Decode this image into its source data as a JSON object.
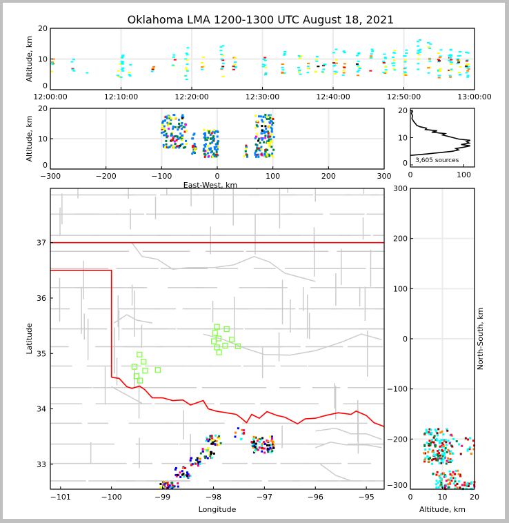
{
  "chart_data": [
    {
      "id": "time_height",
      "type": "scatter",
      "title": "Oklahoma LMA 1200-1300 UTC August 18, 2021",
      "xlabel": "",
      "ylabel": "Altitude, km",
      "x_tick_labels": [
        "12:00:00",
        "12:10:00",
        "12:20:00",
        "12:30:00",
        "12:40:00",
        "12:50:00",
        "13:00:00"
      ],
      "x_range_minutes": [
        0,
        60
      ],
      "y_ticks": [
        0,
        10,
        20
      ],
      "ylim": [
        0,
        20
      ],
      "grid": true,
      "colormap": [
        "#00ffff",
        "#ffff00",
        "#ff8000",
        "#ff0000",
        "#8b0000",
        "#000000"
      ],
      "columns": [
        {
          "t": 0.3,
          "alt": [
            5,
            10
          ],
          "n": 6
        },
        {
          "t": 3.2,
          "alt": [
            5,
            10
          ],
          "n": 5
        },
        {
          "t": 5.2,
          "alt": [
            5.5,
            5.5
          ],
          "n": 1
        },
        {
          "t": 9.6,
          "alt": [
            4,
            6.5
          ],
          "n": 3
        },
        {
          "t": 10.1,
          "alt": [
            4,
            14.5
          ],
          "n": 14
        },
        {
          "t": 11.2,
          "alt": [
            4.5,
            9
          ],
          "n": 4
        },
        {
          "t": 14.5,
          "alt": [
            5,
            8
          ],
          "n": 4
        },
        {
          "t": 17.5,
          "alt": [
            6.5,
            12.5
          ],
          "n": 5
        },
        {
          "t": 19.3,
          "alt": [
            3,
            14.5
          ],
          "n": 12
        },
        {
          "t": 21.5,
          "alt": [
            5,
            11
          ],
          "n": 5
        },
        {
          "t": 24.3,
          "alt": [
            4,
            16
          ],
          "n": 12
        },
        {
          "t": 26.1,
          "alt": [
            3.5,
            10.5
          ],
          "n": 8
        },
        {
          "t": 30.3,
          "alt": [
            4.5,
            12
          ],
          "n": 10
        },
        {
          "t": 33.0,
          "alt": [
            5,
            13
          ],
          "n": 9
        },
        {
          "t": 35.3,
          "alt": [
            4,
            11.5
          ],
          "n": 9
        },
        {
          "t": 36.5,
          "alt": [
            5,
            9
          ],
          "n": 5
        },
        {
          "t": 37.7,
          "alt": [
            5,
            11
          ],
          "n": 6
        },
        {
          "t": 38.7,
          "alt": [
            4.5,
            9.5
          ],
          "n": 7
        },
        {
          "t": 40.3,
          "alt": [
            4.5,
            13.5
          ],
          "n": 10
        },
        {
          "t": 41.5,
          "alt": [
            4.5,
            14
          ],
          "n": 8
        },
        {
          "t": 43.6,
          "alt": [
            4.5,
            12.5
          ],
          "n": 11
        },
        {
          "t": 45.4,
          "alt": [
            5,
            13.5
          ],
          "n": 8
        },
        {
          "t": 47.3,
          "alt": [
            5,
            12
          ],
          "n": 12
        },
        {
          "t": 48.6,
          "alt": [
            4.5,
            13
          ],
          "n": 10
        },
        {
          "t": 50.2,
          "alt": [
            4.5,
            14
          ],
          "n": 13
        },
        {
          "t": 52.2,
          "alt": [
            6.5,
            18
          ],
          "n": 12
        },
        {
          "t": 53.6,
          "alt": [
            5,
            16
          ],
          "n": 10
        },
        {
          "t": 55.1,
          "alt": [
            3.5,
            13
          ],
          "n": 15
        },
        {
          "t": 56.6,
          "alt": [
            4,
            15
          ],
          "n": 18
        },
        {
          "t": 57.8,
          "alt": [
            4,
            13
          ],
          "n": 14
        },
        {
          "t": 59.0,
          "alt": [
            3.5,
            12.5
          ],
          "n": 16
        }
      ]
    },
    {
      "id": "ew_height",
      "type": "scatter",
      "xlabel": "East-West, km",
      "ylabel": "Altitude, km",
      "x_ticks": [
        -300,
        -200,
        -100,
        0,
        100,
        200,
        300
      ],
      "xlim": [
        -300,
        300
      ],
      "y_ticks": [
        0,
        10,
        20
      ],
      "ylim": [
        0,
        20
      ],
      "grid": true,
      "colormap": [
        "#0080ff",
        "#008040",
        "#ffff00",
        "#ff0000",
        "#ff00ff",
        "#000000"
      ],
      "clusters": [
        {
          "x": [
            -100,
            -55
          ],
          "alt": [
            7,
            18
          ],
          "n": 120
        },
        {
          "x": [
            -45,
            -38
          ],
          "alt": [
            5,
            12
          ],
          "n": 20
        },
        {
          "x": [
            -25,
            2
          ],
          "alt": [
            4,
            13
          ],
          "n": 90
        },
        {
          "x": [
            48,
            55
          ],
          "alt": [
            4,
            8
          ],
          "n": 10
        },
        {
          "x": [
            68,
            102
          ],
          "alt": [
            4,
            18
          ],
          "n": 130
        }
      ]
    },
    {
      "id": "alt_histogram",
      "type": "line",
      "xlabel": "",
      "ylabel": "",
      "x_ticks": [
        0,
        100
      ],
      "xlim": [
        0,
        120
      ],
      "y_ticks": [
        0,
        10,
        20
      ],
      "ylim": [
        0,
        20
      ],
      "annotation": "3,605 sources",
      "profile": [
        [
          3.5,
          0
        ],
        [
          4.0,
          30
        ],
        [
          4.5,
          55
        ],
        [
          5.0,
          78
        ],
        [
          5.5,
          90
        ],
        [
          6.0,
          85
        ],
        [
          6.5,
          100
        ],
        [
          7.0,
          112
        ],
        [
          7.5,
          95
        ],
        [
          8.0,
          110
        ],
        [
          8.5,
          105
        ],
        [
          9.0,
          112
        ],
        [
          9.5,
          90
        ],
        [
          10.0,
          80
        ],
        [
          10.5,
          70
        ],
        [
          11.0,
          60
        ],
        [
          11.5,
          65
        ],
        [
          12.0,
          40
        ],
        [
          12.5,
          50
        ],
        [
          13.0,
          28
        ],
        [
          13.5,
          30
        ],
        [
          14.0,
          18
        ],
        [
          14.5,
          12
        ],
        [
          15.0,
          10
        ],
        [
          16.0,
          6
        ],
        [
          17.0,
          3
        ],
        [
          18.0,
          4
        ],
        [
          19.0,
          2
        ],
        [
          19.5,
          4
        ],
        [
          20.0,
          1
        ]
      ]
    },
    {
      "id": "plan_view",
      "type": "scatter",
      "xlabel": "Longitude",
      "ylabel": "Latitude",
      "x_ticks": [
        -101,
        -100,
        -99,
        -98,
        -97,
        -96,
        -95
      ],
      "xlim": [
        -101.2,
        -94.65
      ],
      "y_ticks": [
        33,
        34,
        35,
        36,
        37
      ],
      "ylim": [
        32.55,
        37.98
      ],
      "state_border_color": "#ff0000",
      "county_line_color": "#cccccc",
      "station_color": "#80ff40",
      "stations": [
        [
          -97.93,
          35.48
        ],
        [
          -97.74,
          35.44
        ],
        [
          -97.97,
          35.37
        ],
        [
          -97.9,
          35.27
        ],
        [
          -97.64,
          35.25
        ],
        [
          -97.99,
          35.22
        ],
        [
          -97.93,
          35.11
        ],
        [
          -97.77,
          35.14
        ],
        [
          -97.52,
          35.13
        ],
        [
          -97.89,
          35.02
        ],
        [
          -99.45,
          34.98
        ],
        [
          -99.37,
          34.85
        ],
        [
          -99.55,
          34.76
        ],
        [
          -99.34,
          34.69
        ],
        [
          -99.09,
          34.7
        ],
        [
          -99.51,
          34.59
        ],
        [
          -99.44,
          34.51
        ]
      ],
      "clusters": [
        {
          "lon": [
            -98.15,
            -97.85
          ],
          "lat": [
            33.35,
            33.52
          ],
          "n": 30
        },
        {
          "lon": [
            -98.25,
            -97.98
          ],
          "lat": [
            33.1,
            33.3
          ],
          "n": 25
        },
        {
          "lon": [
            -98.45,
            -98.25
          ],
          "lat": [
            32.97,
            33.12
          ],
          "n": 20
        },
        {
          "lon": [
            -98.75,
            -98.45
          ],
          "lat": [
            32.75,
            32.95
          ],
          "n": 25
        },
        {
          "lon": [
            -99.05,
            -98.65
          ],
          "lat": [
            32.56,
            32.68
          ],
          "n": 35
        },
        {
          "lon": [
            -97.25,
            -96.8
          ],
          "lat": [
            33.2,
            33.5
          ],
          "n": 70
        },
        {
          "lon": [
            -97.6,
            -97.4
          ],
          "lat": [
            33.45,
            33.65
          ],
          "n": 10
        }
      ]
    },
    {
      "id": "ns_height",
      "type": "scatter",
      "xlabel": "Altitude, km",
      "ylabel": "North-South, km",
      "x_ticks": [
        0,
        10,
        20
      ],
      "xlim": [
        0,
        20
      ],
      "y_ticks": [
        -300,
        -200,
        -100,
        0,
        100,
        200,
        300
      ],
      "ylim": [
        -300,
        300
      ],
      "grid": true,
      "colormap": [
        "#00ffff",
        "#008040",
        "#ff8000",
        "#ff0000",
        "#8b0000",
        "#ff0080"
      ],
      "clusters": [
        {
          "alt": [
            4,
            13
          ],
          "y": [
            -250,
            -180
          ],
          "n": 140
        },
        {
          "alt": [
            13,
            20
          ],
          "y": [
            -230,
            -198
          ],
          "n": 20
        },
        {
          "alt": [
            7,
            16
          ],
          "y": [
            -285,
            -262
          ],
          "n": 40
        },
        {
          "alt": [
            8,
            20
          ],
          "y": [
            -300,
            -285
          ],
          "n": 50
        }
      ]
    }
  ]
}
